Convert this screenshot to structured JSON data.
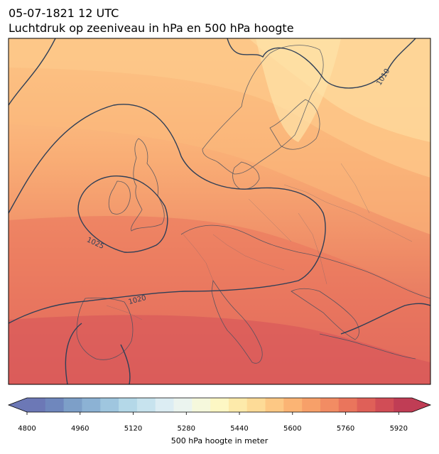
{
  "header": {
    "datetime": "05-07-1821 12 UTC",
    "subtitle": "Luchtdruk op zeeniveau in hPa en 500 hPa hoogte"
  },
  "map": {
    "region": "Europe",
    "isobars_hPa": [
      "1010",
      "1020",
      "1025"
    ],
    "contour_color": "#2f3f57",
    "coastline_color": "#454e5e"
  },
  "colorbar": {
    "label": "500 hPa hoogte in meter",
    "ticks": [
      "4800",
      "4960",
      "5120",
      "5280",
      "5440",
      "5600",
      "5760",
      "5920"
    ],
    "min": 4800,
    "max": 5960,
    "colors": [
      "#6c78b6",
      "#6f87bd",
      "#7d9fc8",
      "#8cb2d4",
      "#9fc6df",
      "#b4d8e8",
      "#c7e3ee",
      "#dcedf3",
      "#ebf4ef",
      "#f5f8dc",
      "#fdf7c4",
      "#fdeaaa",
      "#fddb97",
      "#fdc884",
      "#fbb474",
      "#f7a069",
      "#f28c63",
      "#ea755c",
      "#df6058",
      "#d14d56",
      "#c03d55"
    ]
  }
}
